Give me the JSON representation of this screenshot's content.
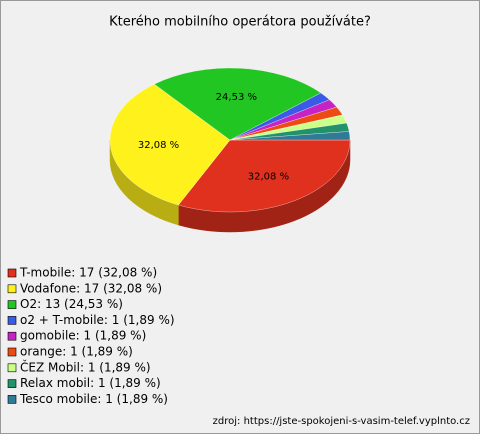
{
  "chart_data": {
    "type": "pie3d",
    "title": "Kterého mobilního operátora používáte?",
    "categories": [
      "T-mobile: 17 (32,08 %)",
      "Vodafone: 17 (32,08 %)",
      "O2: 13 (24,53 %)",
      "o2 + T-mobile: 1 (1,89 %)",
      "gomobile: 1 (1,89 %)",
      "orange: 1 (1,89 %)",
      "ČEZ Mobil: 1 (1,89 %)",
      "Relax mobil: 1 (1,89 %)",
      "Tesco mobile: 1 (1,89 %)"
    ],
    "values": [
      32.08,
      32.08,
      24.53,
      1.89,
      1.89,
      1.89,
      1.89,
      1.89,
      1.89
    ],
    "value_labels": [
      "32,08 %",
      "32,08 %",
      "24,53 %",
      null,
      null,
      null,
      null,
      null,
      null
    ],
    "colors": [
      "#e0301e",
      "#fff21c",
      "#22c622",
      "#3a5be8",
      "#c623c6",
      "#ee4a14",
      "#ccff88",
      "#22926a",
      "#2f7a96"
    ],
    "source": "zdroj: https://jste-spokojeni-s-vasim-telef.vyplnto.cz"
  }
}
